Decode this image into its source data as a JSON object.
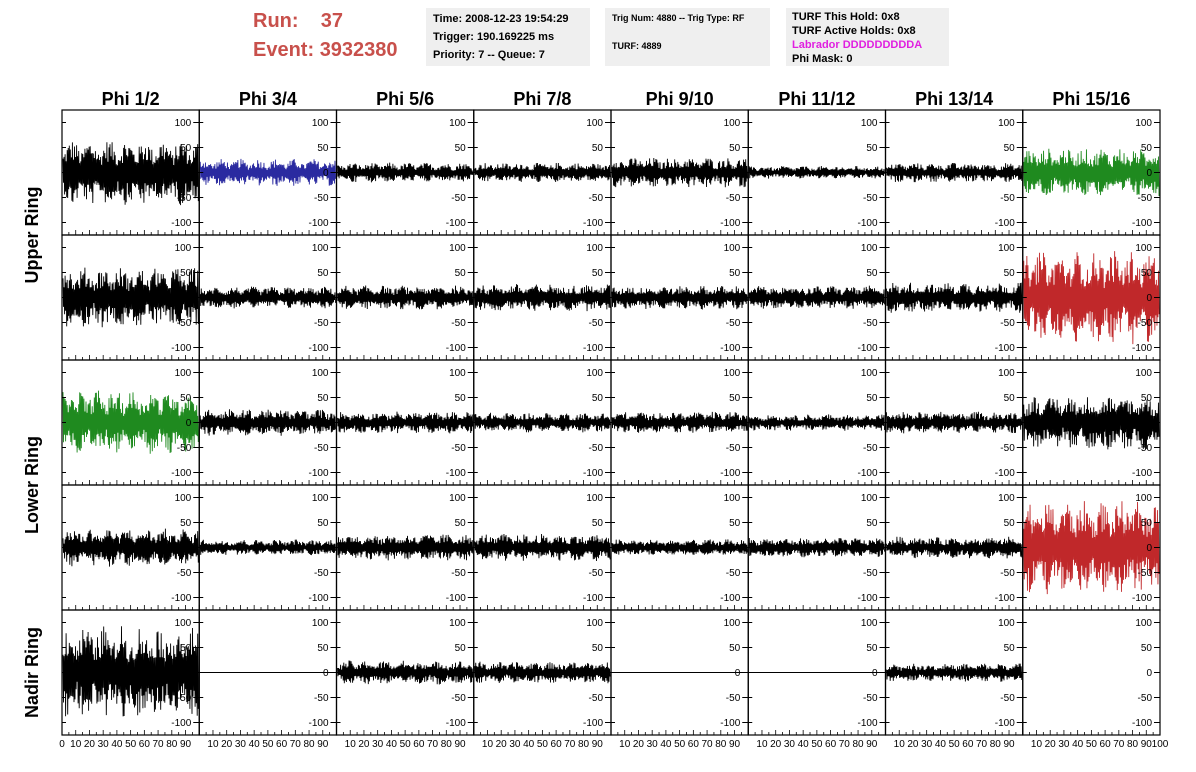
{
  "header": {
    "run_label": "Run:",
    "run_value": "37",
    "event_label": "Event:",
    "event_value": "3932380",
    "info_panel": {
      "time": "Time: 2008-12-23 19:54:29",
      "trigger": "Trigger: 190.169225 ms",
      "priority": "Priority: 7 -- Queue: 7"
    },
    "trig_panel": {
      "trig_num": "Trig Num: 4880 -- Trig Type: RF",
      "turf": "TURF: 4889"
    },
    "turf_panel": {
      "this_hold": "TURF This Hold: 0x8",
      "active_holds": "TURF Active Holds: 0x8",
      "labrador": "Labrador DDDDDDDDDA",
      "phi_mask": "Phi Mask: 0"
    }
  },
  "colors": {
    "title_red": "#c8504b",
    "labrador_magenta": "#e020e0",
    "trace_default": "#000000",
    "trace_blue": "#2a2aa0",
    "trace_green": "#1f8a1f",
    "trace_red": "#c0282a",
    "panel_bg": "#efefef"
  },
  "chart_data": {
    "type": "line",
    "title": "",
    "columns": [
      "Phi 1/2",
      "Phi 3/4",
      "Phi 5/6",
      "Phi 7/8",
      "Phi 9/10",
      "Phi 11/12",
      "Phi 13/14",
      "Phi 15/16"
    ],
    "rows": [
      "Upper Ring",
      "Upper Ring",
      "Lower Ring",
      "Lower Ring",
      "Nadir Ring"
    ],
    "row_groups": [
      {
        "label": "Upper Ring",
        "rows": [
          0,
          1
        ]
      },
      {
        "label": "Lower Ring",
        "rows": [
          2,
          3
        ]
      },
      {
        "label": "Nadir Ring",
        "rows": [
          4
        ]
      }
    ],
    "xlim": [
      0,
      100
    ],
    "ylim": [
      -120,
      120
    ],
    "yticks": [
      -100,
      -50,
      0,
      50,
      100
    ],
    "xticks": [
      0,
      10,
      20,
      30,
      40,
      50,
      60,
      70,
      80,
      90,
      100
    ],
    "grid": false,
    "traces": [
      [
        {
          "amplitude": 60,
          "color": "black"
        },
        {
          "amplitude": 25,
          "color": "blue"
        },
        {
          "amplitude": 18,
          "color": "black"
        },
        {
          "amplitude": 18,
          "color": "black"
        },
        {
          "amplitude": 28,
          "color": "black"
        },
        {
          "amplitude": 12,
          "color": "black"
        },
        {
          "amplitude": 18,
          "color": "black"
        },
        {
          "amplitude": 45,
          "color": "green"
        }
      ],
      [
        {
          "amplitude": 55,
          "color": "black"
        },
        {
          "amplitude": 20,
          "color": "black"
        },
        {
          "amplitude": 22,
          "color": "black"
        },
        {
          "amplitude": 25,
          "color": "black"
        },
        {
          "amplitude": 22,
          "color": "black"
        },
        {
          "amplitude": 22,
          "color": "black"
        },
        {
          "amplitude": 28,
          "color": "black"
        },
        {
          "amplitude": 85,
          "color": "red"
        }
      ],
      [
        {
          "amplitude": 60,
          "color": "green"
        },
        {
          "amplitude": 25,
          "color": "black"
        },
        {
          "amplitude": 20,
          "color": "black"
        },
        {
          "amplitude": 18,
          "color": "black"
        },
        {
          "amplitude": 20,
          "color": "black"
        },
        {
          "amplitude": 15,
          "color": "black"
        },
        {
          "amplitude": 20,
          "color": "black"
        },
        {
          "amplitude": 50,
          "color": "black"
        }
      ],
      [
        {
          "amplitude": 35,
          "color": "black"
        },
        {
          "amplitude": 15,
          "color": "black"
        },
        {
          "amplitude": 25,
          "color": "black"
        },
        {
          "amplitude": 25,
          "color": "black"
        },
        {
          "amplitude": 15,
          "color": "black"
        },
        {
          "amplitude": 18,
          "color": "black"
        },
        {
          "amplitude": 20,
          "color": "black"
        },
        {
          "amplitude": 85,
          "color": "red"
        }
      ],
      [
        {
          "amplitude": 85,
          "color": "black"
        },
        {
          "amplitude": 0,
          "color": "black"
        },
        {
          "amplitude": 22,
          "color": "black"
        },
        {
          "amplitude": 20,
          "color": "black"
        },
        {
          "amplitude": 0,
          "color": "black"
        },
        {
          "amplitude": 0,
          "color": "black"
        },
        {
          "amplitude": 17,
          "color": "black"
        },
        null
      ]
    ]
  }
}
